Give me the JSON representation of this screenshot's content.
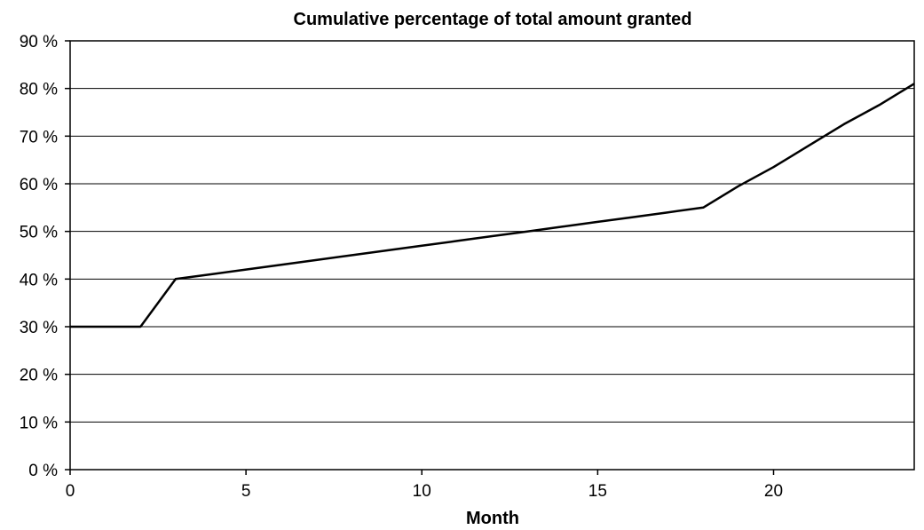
{
  "chart_data": {
    "type": "line",
    "title": "Cumulative percentage of total amount granted",
    "xlabel": "Month",
    "ylabel": "",
    "xlim": [
      0,
      24
    ],
    "ylim": [
      0,
      90
    ],
    "x_ticks": [
      "0",
      "5",
      "10",
      "15",
      "20"
    ],
    "y_ticks": [
      "0 %",
      "10 %",
      "20 %",
      "30 %",
      "40 %",
      "50 %",
      "60 %",
      "70 %",
      "80 %",
      "90 %"
    ],
    "grid": "horizontal",
    "line_color": "#000000",
    "series": [
      {
        "x": [
          0,
          1,
          2,
          3,
          4,
          5,
          6,
          7,
          8,
          9,
          10,
          11,
          12,
          13,
          14,
          15,
          16,
          17,
          18,
          19,
          20,
          21,
          22,
          23,
          24
        ],
        "y": [
          30,
          30,
          30,
          40,
          41,
          42,
          43,
          44,
          45,
          46,
          47,
          48,
          49,
          50,
          51,
          52,
          53,
          54,
          55,
          59.5,
          63.5,
          68,
          72.5,
          76.5,
          81
        ]
      }
    ]
  }
}
